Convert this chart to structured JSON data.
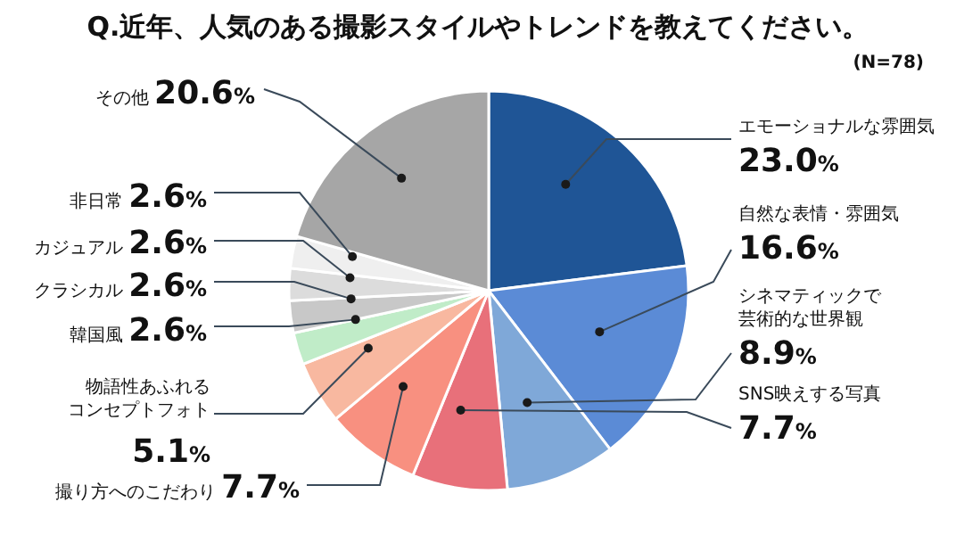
{
  "chart_data": {
    "type": "pie",
    "title": "Q.近年、人気のある撮影スタイルやトレンドを教えてください。",
    "annotations": [
      "(N=78)"
    ],
    "categories": [
      "エモーショナルな雰囲気",
      "自然な表情・雰囲気",
      "シネマティックで芸術的な世界観",
      "SNS映えする写真",
      "撮り方へのこだわり",
      "物語性あふれるコンセプトフォト",
      "韓国風",
      "クラシカル",
      "カジュアル",
      "非日常",
      "その他"
    ],
    "values": [
      23.0,
      16.6,
      8.9,
      7.7,
      7.7,
      5.1,
      2.6,
      2.6,
      2.6,
      2.6,
      20.6
    ],
    "value_labels": [
      "23.0%",
      "16.6%",
      "8.9%",
      "7.7%",
      "7.7%",
      "5.1%",
      "2.6%",
      "2.6%",
      "2.6%",
      "2.6%",
      "20.6%"
    ],
    "colors": [
      "#1f5596",
      "#5b8bd6",
      "#7fa8d8",
      "#e8707a",
      "#f89080",
      "#f8b8a0",
      "#c0ecc8",
      "#c8c8c8",
      "#dcdcdc",
      "#efefef",
      "#a6a6a6"
    ]
  }
}
